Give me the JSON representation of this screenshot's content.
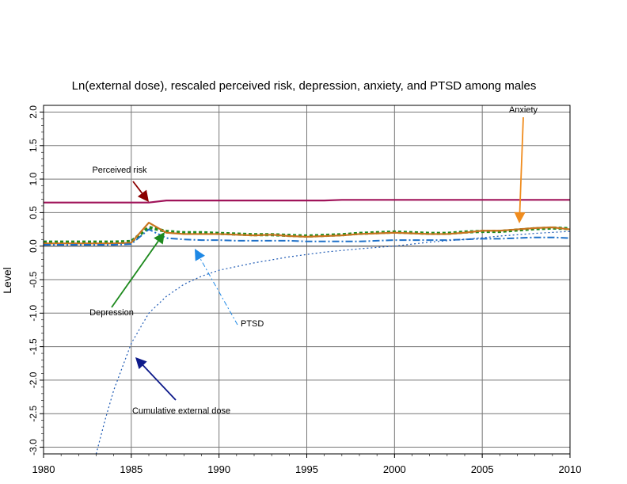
{
  "chart_data": {
    "type": "line",
    "title": "Ln(external dose), rescaled perceived risk, depression, anxiety, and PTSD among males",
    "xlabel": "",
    "ylabel": "Level",
    "xlim": [
      1980,
      2010
    ],
    "ylim": [
      -3.1,
      2.1
    ],
    "x_ticks": [
      "1980",
      "1985",
      "1990",
      "1995",
      "2000",
      "2005",
      "2010"
    ],
    "y_ticks": [
      "-3.0",
      "-2.5",
      "-2.0",
      "-1.5",
      "-1.0",
      "-0.5",
      "0.0",
      "0.5",
      "1.0",
      "1.5",
      "2.0"
    ],
    "grid": true,
    "series": [
      {
        "name": "Perceived risk",
        "color": "#a0145a",
        "style": "solid",
        "x": [
          1980,
          1986,
          1987,
          1990,
          1996,
          1997,
          2010
        ],
        "y": [
          0.65,
          0.65,
          0.68,
          0.68,
          0.68,
          0.69,
          0.69
        ]
      },
      {
        "name": "Depression",
        "color": "#208a20",
        "style": "dotted-thick",
        "x": [
          1980,
          1981,
          1982,
          1983,
          1984,
          1985,
          1986,
          1987,
          1988,
          1989,
          1990,
          1991,
          1992,
          1993,
          1994,
          1995,
          1996,
          1997,
          1998,
          1999,
          2000,
          2001,
          2002,
          2003,
          2004,
          2005,
          2006,
          2007,
          2008,
          2009,
          2010
        ],
        "y": [
          0.06,
          0.06,
          0.06,
          0.06,
          0.06,
          0.07,
          0.28,
          0.22,
          0.2,
          0.2,
          0.19,
          0.18,
          0.17,
          0.17,
          0.16,
          0.15,
          0.16,
          0.17,
          0.19,
          0.2,
          0.21,
          0.2,
          0.19,
          0.19,
          0.21,
          0.22,
          0.22,
          0.24,
          0.26,
          0.27,
          0.26
        ]
      },
      {
        "name": "Anxiety",
        "color": "#c8741e",
        "style": "solid",
        "x": [
          1980,
          1981,
          1982,
          1983,
          1984,
          1985,
          1986,
          1987,
          1988,
          1989,
          1990,
          1991,
          1992,
          1993,
          1994,
          1995,
          1996,
          1997,
          1998,
          1999,
          2000,
          2001,
          2002,
          2003,
          2004,
          2005,
          2006,
          2007,
          2008,
          2009,
          2010
        ],
        "y": [
          0.04,
          0.04,
          0.04,
          0.04,
          0.04,
          0.05,
          0.35,
          0.2,
          0.18,
          0.18,
          0.18,
          0.17,
          0.16,
          0.17,
          0.15,
          0.14,
          0.15,
          0.16,
          0.18,
          0.19,
          0.2,
          0.19,
          0.18,
          0.18,
          0.2,
          0.23,
          0.23,
          0.25,
          0.27,
          0.28,
          0.25
        ]
      },
      {
        "name": "PTSD",
        "color": "#1e70c8",
        "style": "dash-dot",
        "x": [
          1980,
          1981,
          1982,
          1983,
          1984,
          1985,
          1986,
          1987,
          1988,
          1989,
          1990,
          1991,
          1992,
          1993,
          1994,
          1995,
          1996,
          1997,
          1998,
          1999,
          2000,
          2001,
          2002,
          2003,
          2004,
          2005,
          2006,
          2007,
          2008,
          2009,
          2010
        ],
        "y": [
          0.02,
          0.02,
          0.02,
          0.02,
          0.02,
          0.03,
          0.25,
          0.12,
          0.1,
          0.09,
          0.09,
          0.08,
          0.08,
          0.08,
          0.08,
          0.07,
          0.07,
          0.07,
          0.07,
          0.08,
          0.09,
          0.09,
          0.09,
          0.09,
          0.1,
          0.11,
          0.11,
          0.12,
          0.13,
          0.13,
          0.12
        ]
      },
      {
        "name": "Cumulative external dose",
        "color": "#1e5ab4",
        "style": "dotted",
        "x": [
          1983.0,
          1983.5,
          1984.0,
          1984.5,
          1985.0,
          1986.0,
          1987.0,
          1988.0,
          1989.0,
          1990.0,
          1992.0,
          1994.0,
          1996.0,
          1998.0,
          2000.0,
          2002.0,
          2004.0,
          2006.0,
          2008.0,
          2010.0
        ],
        "y": [
          -3.1,
          -2.6,
          -2.15,
          -1.8,
          -1.45,
          -1.0,
          -0.75,
          -0.57,
          -0.45,
          -0.36,
          -0.25,
          -0.16,
          -0.09,
          -0.04,
          0.0,
          0.06,
          0.1,
          0.15,
          0.19,
          0.22
        ]
      }
    ],
    "annotations": [
      {
        "text": "Perceived risk",
        "series": "Perceived risk",
        "arrow_color": "#8b0000"
      },
      {
        "text": "Anxiety",
        "series": "Anxiety",
        "arrow_color": "#f08c1e"
      },
      {
        "text": "Depression",
        "series": "Depression",
        "arrow_color": "#1e8a1e"
      },
      {
        "text": "PTSD",
        "series": "PTSD",
        "arrow_color": "#1e88e5"
      },
      {
        "text": "Cumulative external dose",
        "series": "Cumulative external dose",
        "arrow_color": "#0d1a8a"
      }
    ]
  }
}
